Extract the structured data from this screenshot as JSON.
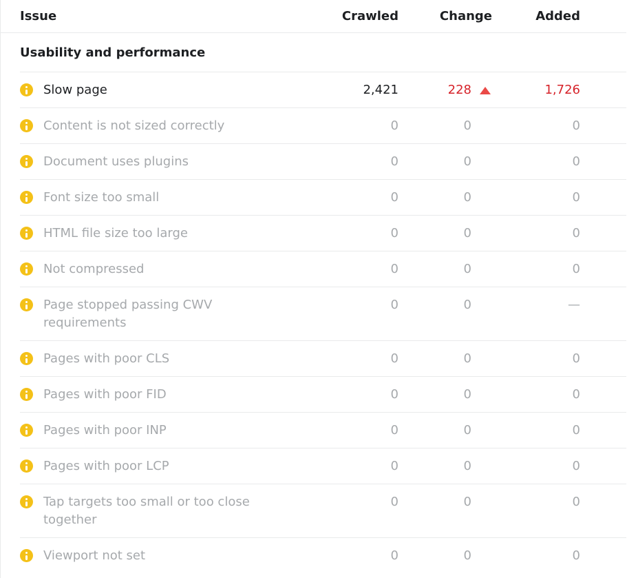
{
  "table": {
    "columns": {
      "issue": "Issue",
      "crawled": "Crawled",
      "change": "Change",
      "added": "Added"
    },
    "section": "Usability and performance",
    "rows": [
      {
        "issue": "Slow page",
        "crawled": "2,421",
        "change": "228",
        "trend": "up",
        "added": "1,726",
        "state": "active"
      },
      {
        "issue": "Content is not sized correctly",
        "crawled": "0",
        "change": "0",
        "trend": "",
        "added": "0",
        "state": "muted"
      },
      {
        "issue": "Document uses plugins",
        "crawled": "0",
        "change": "0",
        "trend": "",
        "added": "0",
        "state": "muted"
      },
      {
        "issue": "Font size too small",
        "crawled": "0",
        "change": "0",
        "trend": "",
        "added": "0",
        "state": "muted"
      },
      {
        "issue": "HTML file size too large",
        "crawled": "0",
        "change": "0",
        "trend": "",
        "added": "0",
        "state": "muted"
      },
      {
        "issue": "Not compressed",
        "crawled": "0",
        "change": "0",
        "trend": "",
        "added": "0",
        "state": "muted"
      },
      {
        "issue": "Page stopped passing CWV requirements",
        "crawled": "0",
        "change": "0",
        "trend": "",
        "added": "—",
        "state": "muted"
      },
      {
        "issue": "Pages with poor CLS",
        "crawled": "0",
        "change": "0",
        "trend": "",
        "added": "0",
        "state": "muted"
      },
      {
        "issue": "Pages with poor FID",
        "crawled": "0",
        "change": "0",
        "trend": "",
        "added": "0",
        "state": "muted"
      },
      {
        "issue": "Pages with poor INP",
        "crawled": "0",
        "change": "0",
        "trend": "",
        "added": "0",
        "state": "muted"
      },
      {
        "issue": "Pages with poor LCP",
        "crawled": "0",
        "change": "0",
        "trend": "",
        "added": "0",
        "state": "muted"
      },
      {
        "issue": "Tap targets too small or too close together",
        "crawled": "0",
        "change": "0",
        "trend": "",
        "added": "0",
        "state": "muted"
      },
      {
        "issue": "Viewport not set",
        "crawled": "0",
        "change": "0",
        "trend": "",
        "added": "0",
        "state": "muted"
      }
    ],
    "icons": {
      "row_icon": "info-icon",
      "trend_up_icon": "triangle-up-icon"
    }
  },
  "colors": {
    "dark": "#1d1f22",
    "muted_grey": "#a6a9ac",
    "negative_red": "#d6232a",
    "triangle_red": "#ea4a47",
    "accent_yellow": "#f4c118",
    "border_grey": "#e9eaeb"
  }
}
